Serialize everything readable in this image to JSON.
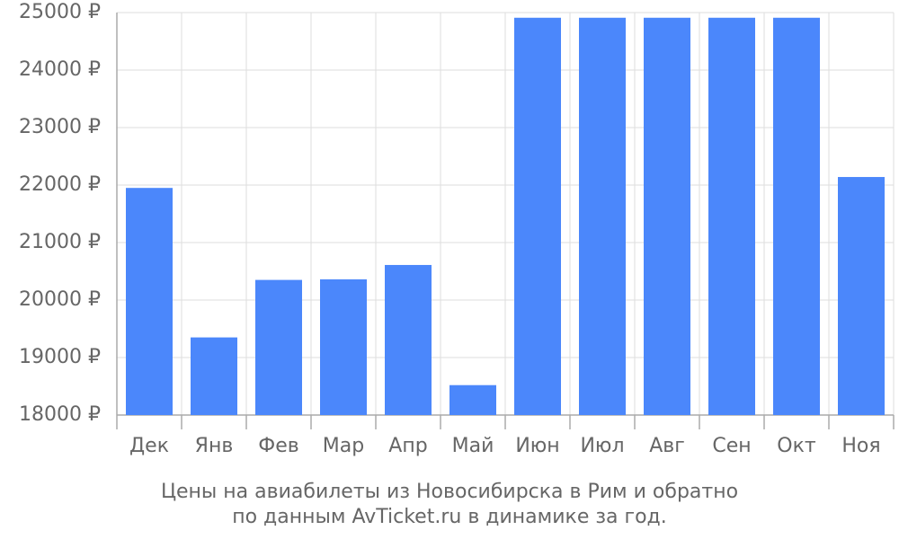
{
  "chart_data": {
    "type": "bar",
    "title": "Цены на авиабилеты из Новосибирска в Рим и обратно",
    "subtitle": "по данным AvTicket.ru в динамике за год.",
    "categories": [
      "Дек",
      "Янв",
      "Фев",
      "Мар",
      "Апр",
      "Май",
      "Июн",
      "Июл",
      "Авг",
      "Сен",
      "Окт",
      "Ноя"
    ],
    "values": [
      21950,
      19350,
      20350,
      20360,
      20610,
      18520,
      24910,
      24910,
      24910,
      24910,
      24910,
      22140
    ],
    "color": "#4b87fb",
    "ylim": [
      18000,
      25000
    ],
    "yticks": [
      {
        "value": 18000,
        "label": "18000 ₽"
      },
      {
        "value": 19000,
        "label": "19000 ₽"
      },
      {
        "value": 20000,
        "label": "20000 ₽"
      },
      {
        "value": 21000,
        "label": "21000 ₽"
      },
      {
        "value": 22000,
        "label": "22000 ₽"
      },
      {
        "value": 23000,
        "label": "23000 ₽"
      },
      {
        "value": 24000,
        "label": "24000 ₽"
      },
      {
        "value": 25000,
        "label": "25000 ₽"
      }
    ],
    "grid": true
  }
}
